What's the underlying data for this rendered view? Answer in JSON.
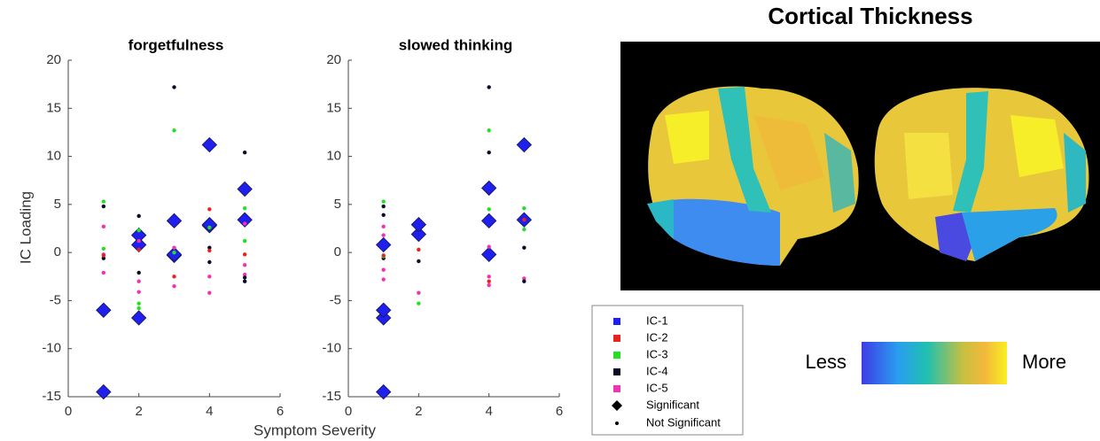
{
  "chart_data": [
    {
      "type": "scatter",
      "title": "forgetfulness",
      "ylabel": "IC Loading",
      "xlabel": "Symptom Severity",
      "xlim": [
        0,
        6
      ],
      "xticks": [
        0,
        2,
        4,
        6
      ],
      "ylim": [
        -15,
        20
      ],
      "yticks": [
        -15,
        -10,
        -5,
        0,
        5,
        10,
        15,
        20
      ],
      "series": [
        {
          "name": "IC-1",
          "color": "#1f1ff0",
          "x": [
            1,
            1,
            2,
            2,
            2,
            3,
            3,
            4,
            4,
            5,
            5
          ],
          "values": [
            -6,
            -14.5,
            1.8,
            0.8,
            -6.8,
            3.3,
            -0.2,
            11.2,
            2.9,
            6.6,
            3.4
          ],
          "significant": [
            true,
            true,
            true,
            true,
            true,
            true,
            true,
            true,
            true,
            true,
            true
          ]
        },
        {
          "name": "IC-2",
          "color": "#e8231e",
          "x": [
            1,
            2,
            3,
            4,
            4,
            5
          ],
          "values": [
            -0.3,
            0.3,
            -2.5,
            4.5,
            0.2,
            -0.2
          ],
          "significant": [
            false,
            false,
            false,
            false,
            false,
            false
          ]
        },
        {
          "name": "IC-3",
          "color": "#22e022",
          "x": [
            1,
            1,
            2,
            2,
            2,
            3,
            3,
            4,
            5,
            5,
            3,
            4
          ],
          "values": [
            5.3,
            0.4,
            2.3,
            -5.3,
            -5.8,
            12.7,
            0,
            2.6,
            4.6,
            1.2,
            -0.3,
            2.8
          ],
          "significant": [
            false,
            false,
            false,
            false,
            false,
            false,
            false,
            false,
            false,
            false,
            true,
            true
          ]
        },
        {
          "name": "IC-4",
          "color": "#0a0a28",
          "x": [
            1,
            1,
            2,
            2,
            3,
            4,
            4,
            5,
            5,
            5
          ],
          "values": [
            4.8,
            -0.6,
            3.8,
            -2.1,
            17.2,
            0.5,
            -1,
            10.4,
            -2.6,
            -3
          ],
          "significant": [
            false,
            false,
            false,
            false,
            false,
            false,
            false,
            false,
            false,
            false
          ]
        },
        {
          "name": "IC-5",
          "color": "#f032b4",
          "x": [
            1,
            1,
            1,
            2,
            2,
            2,
            3,
            3,
            4,
            4,
            5,
            5,
            5
          ],
          "values": [
            2.7,
            -2.1,
            -0.2,
            1.2,
            -3,
            -4.1,
            0.5,
            -3.5,
            -2.5,
            -4.2,
            3,
            -1.3,
            -2.3
          ],
          "significant": [
            false,
            false,
            false,
            false,
            false,
            false,
            false,
            false,
            false,
            false,
            false,
            false,
            false
          ]
        }
      ]
    },
    {
      "type": "scatter",
      "title": "slowed thinking",
      "xlim": [
        0,
        6
      ],
      "xticks": [
        0,
        2,
        4,
        6
      ],
      "ylim": [
        -15,
        20
      ],
      "yticks": [
        -15,
        -10,
        -5,
        0,
        5,
        10,
        15,
        20
      ],
      "series": [
        {
          "color": "#1f1ff0",
          "x": [
            1,
            1,
            1,
            1,
            2,
            2,
            4,
            4,
            4,
            5,
            5
          ],
          "values": [
            0.8,
            -6,
            -6.8,
            -14.5,
            2.9,
            1.9,
            6.7,
            3.3,
            -0.2,
            11.2,
            3.4
          ],
          "significant": [
            true,
            true,
            true,
            true,
            true,
            true,
            true,
            true,
            true,
            true,
            true
          ]
        },
        {
          "color": "#e8231e",
          "x": [
            1,
            2,
            4,
            5
          ],
          "values": [
            -0.3,
            0.3,
            -3,
            3.4
          ],
          "significant": [
            false,
            false,
            false,
            false
          ]
        },
        {
          "color": "#22e022",
          "x": [
            1,
            1,
            2,
            4,
            4,
            5,
            5
          ],
          "values": [
            5.3,
            -0.4,
            -5.3,
            12.7,
            4.5,
            4.6,
            2.4
          ],
          "significant": [
            false,
            false,
            false,
            false,
            false,
            false,
            false
          ]
        },
        {
          "color": "#0a0a28",
          "x": [
            1,
            1,
            1,
            2,
            4,
            4,
            5,
            5
          ],
          "values": [
            4.8,
            3.9,
            -0.6,
            -0.9,
            17.2,
            10.4,
            0.5,
            -3
          ],
          "significant": [
            false,
            false,
            false,
            false,
            false,
            false,
            false,
            false
          ]
        },
        {
          "color": "#f032b4",
          "x": [
            1,
            1,
            1,
            1,
            2,
            4,
            4,
            4,
            5
          ],
          "values": [
            2.7,
            1.8,
            -1.8,
            -2.8,
            -4.2,
            -3.4,
            -2.5,
            0.6,
            -2.7
          ],
          "significant": [
            false,
            false,
            false,
            false,
            false,
            false,
            false,
            false,
            false
          ]
        }
      ]
    }
  ],
  "legend": {
    "significant": "Significant",
    "not_significant": "Not Significant"
  },
  "brain_panel": {
    "title": "Cortical Thickness",
    "colorbar": {
      "low_label": "Less",
      "high_label": "More"
    }
  }
}
